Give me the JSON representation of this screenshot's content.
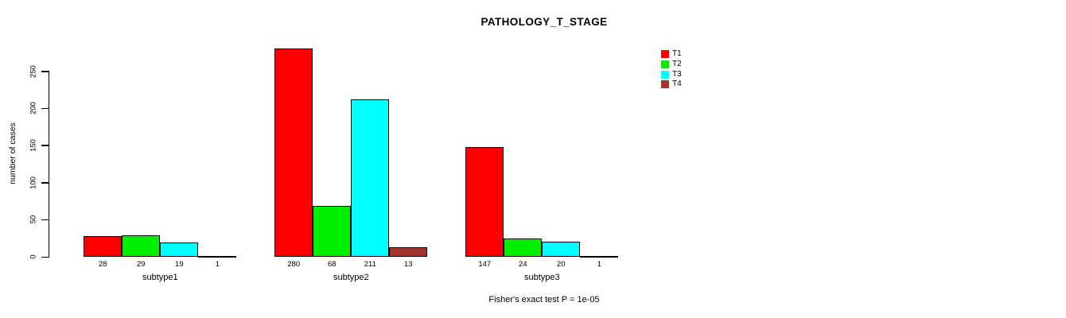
{
  "chart_data": {
    "type": "bar",
    "title": "PATHOLOGY_T_STAGE",
    "ylabel": "number of cases",
    "xlabel": "",
    "categories": [
      "subtype1",
      "subtype2",
      "subtype3"
    ],
    "series": [
      {
        "name": "T1",
        "color": "#ff0000",
        "values": [
          28,
          280,
          147
        ]
      },
      {
        "name": "T2",
        "color": "#00ee00",
        "values": [
          29,
          68,
          24
        ]
      },
      {
        "name": "T3",
        "color": "#00ffff",
        "values": [
          19,
          211,
          20
        ]
      },
      {
        "name": "T4",
        "color": "#a3342e",
        "values": [
          1,
          13,
          1
        ]
      }
    ],
    "yticks": [
      0,
      50,
      100,
      150,
      200,
      250
    ],
    "ylim": [
      0,
      250
    ],
    "grid": false,
    "bar_value_labels": true,
    "legend_position": "top-right",
    "legend_entries": [
      "T1",
      "T2",
      "T3",
      "T4"
    ],
    "annotation": "Fisher's exact test P = 1e-05",
    "axis_color": "#000000"
  }
}
